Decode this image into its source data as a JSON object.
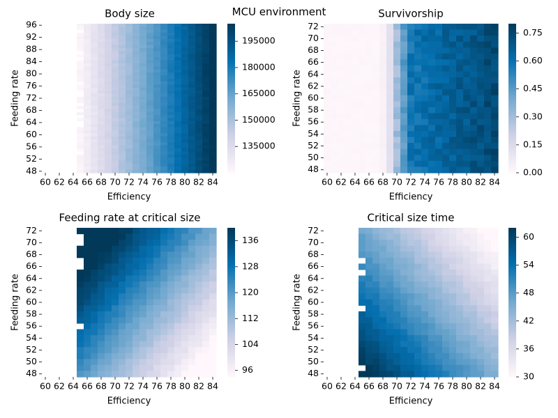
{
  "suptitle": "MCU environment",
  "colors": {
    "low": "#fff7fb",
    "mid": "#74a9cf",
    "high": "#023858"
  },
  "chart_data": [
    {
      "type": "heatmap",
      "title": "Body size",
      "xlabel": "Efficiency",
      "ylabel": "Feeding rate",
      "x_ticks": [
        "60",
        "62",
        "64",
        "66",
        "68",
        "70",
        "72",
        "74",
        "76",
        "78",
        "80",
        "82",
        "84"
      ],
      "y_ticks": [
        "96",
        "92",
        "88",
        "84",
        "80",
        "76",
        "72",
        "68",
        "64",
        "60",
        "56",
        "52",
        "48"
      ],
      "x_range": [
        60,
        85
      ],
      "y_range": [
        48,
        97
      ],
      "colorbar": {
        "min": 120000,
        "max": 205000,
        "ticks": [
          "135000",
          "150000",
          "165000",
          "180000",
          "195000"
        ],
        "tick_values": [
          135000,
          150000,
          165000,
          180000,
          195000
        ]
      },
      "valid_from_x": 65,
      "value_model": "increases with efficiency; ~122000 at 65 to ~205000 at 84"
    },
    {
      "type": "heatmap",
      "title": "Survivorship",
      "xlabel": "Efficiency",
      "ylabel": "Feeding rate",
      "x_ticks": [
        "60",
        "62",
        "64",
        "66",
        "68",
        "70",
        "72",
        "74",
        "76",
        "78",
        "80",
        "82",
        "84"
      ],
      "y_ticks": [
        "72",
        "70",
        "68",
        "66",
        "64",
        "62",
        "60",
        "58",
        "56",
        "54",
        "52",
        "50",
        "48"
      ],
      "x_range": [
        60,
        85
      ],
      "y_range": [
        48,
        73
      ],
      "colorbar": {
        "min": 0,
        "max": 0.8,
        "ticks": [
          "0.00",
          "0.15",
          "0.30",
          "0.45",
          "0.60",
          "0.75"
        ],
        "tick_values": [
          0,
          0.15,
          0.3,
          0.45,
          0.6,
          0.75
        ]
      },
      "valid_from_x": 60,
      "value_model": "near 0 below efficiency 69, sharp rise at 70-72, ~0.6-0.8 above"
    },
    {
      "type": "heatmap",
      "title": "Feeding rate at critical size",
      "xlabel": "Efficiency",
      "ylabel": "Feeding rate",
      "x_ticks": [
        "60",
        "62",
        "64",
        "66",
        "68",
        "70",
        "72",
        "74",
        "76",
        "78",
        "80",
        "82",
        "84"
      ],
      "y_ticks": [
        "72",
        "70",
        "68",
        "66",
        "64",
        "62",
        "60",
        "58",
        "56",
        "54",
        "52",
        "50",
        "48"
      ],
      "x_range": [
        60,
        85
      ],
      "y_range": [
        48,
        73
      ],
      "colorbar": {
        "min": 94,
        "max": 140,
        "ticks": [
          "96",
          "104",
          "112",
          "120",
          "128",
          "136"
        ],
        "tick_values": [
          96,
          104,
          112,
          120,
          128,
          136
        ]
      },
      "valid_from_x": 65,
      "value_model": "highest (~138) at top-left, lowest (~95) at bottom-right"
    },
    {
      "type": "heatmap",
      "title": "Critical size time",
      "xlabel": "Efficiency",
      "ylabel": "Feeding rate",
      "x_ticks": [
        "60",
        "62",
        "64",
        "66",
        "68",
        "70",
        "72",
        "74",
        "76",
        "78",
        "80",
        "82",
        "84"
      ],
      "y_ticks": [
        "72",
        "70",
        "68",
        "66",
        "64",
        "62",
        "60",
        "58",
        "56",
        "54",
        "52",
        "50",
        "48"
      ],
      "x_range": [
        60,
        85
      ],
      "y_range": [
        48,
        73
      ],
      "colorbar": {
        "min": 30,
        "max": 62,
        "ticks": [
          "30",
          "36",
          "42",
          "48",
          "54",
          "60"
        ],
        "tick_values": [
          30,
          36,
          42,
          48,
          54,
          60
        ]
      },
      "valid_from_x": 65,
      "value_model": "highest (~62) at bottom-left, lowest (~30) at top-right"
    }
  ]
}
